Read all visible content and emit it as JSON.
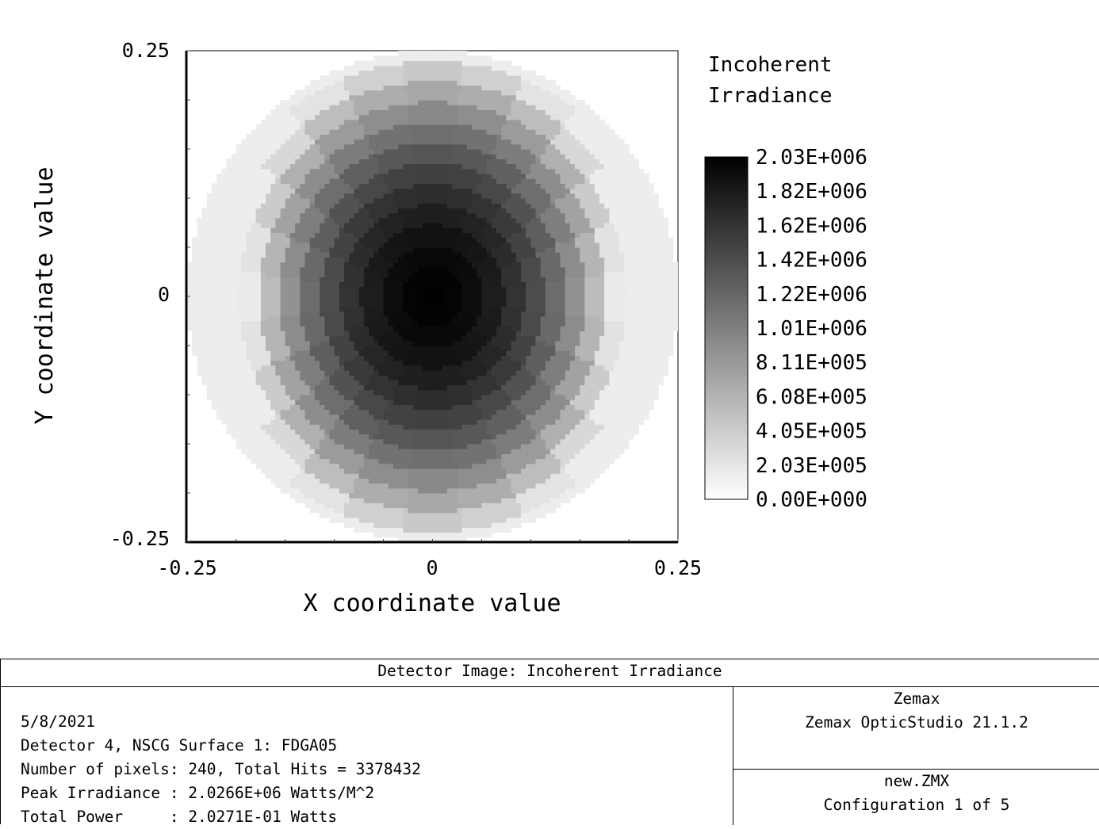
{
  "chart_data": {
    "type": "heatmap",
    "title": "",
    "xlabel": "X coordinate value",
    "ylabel": "Y coordinate value",
    "xlim": [
      -0.25,
      0.25
    ],
    "ylim": [
      -0.25,
      0.25
    ],
    "x_tick_labels": [
      "-0.25",
      "0",
      "0.25"
    ],
    "y_tick_labels": [
      "0.25",
      "0",
      "-0.25"
    ],
    "colormap": "grayscale-inverted",
    "legend_title": [
      "Incoherent",
      "Irradiance"
    ],
    "legend_labels": [
      "2.03E+006",
      "1.82E+006",
      "1.62E+006",
      "1.42E+006",
      "1.22E+006",
      "1.01E+006",
      "8.11E+005",
      "6.08E+005",
      "4.05E+005",
      "2.03E+005",
      "0.00E+000"
    ],
    "value_range": [
      0,
      2030000
    ],
    "peak_irradiance": 2026600,
    "spot_radius": 0.25,
    "center_offset": [
      0,
      0
    ]
  },
  "info": {
    "title": "Detector Image: Incoherent Irradiance",
    "lines": [
      "5/8/2021",
      "Detector 4, NSCG Surface 1: FDGA05",
      "Number of pixels: 240, Total Hits = 3378432",
      "Peak Irradiance : 2.0266E+06 Watts/M^2",
      "Total Power     : 2.0271E-01 Watts"
    ],
    "company": "Zemax",
    "software": "Zemax OpticStudio 21.1.2",
    "file": "new.ZMX",
    "configuration": "Configuration 1 of 5"
  }
}
